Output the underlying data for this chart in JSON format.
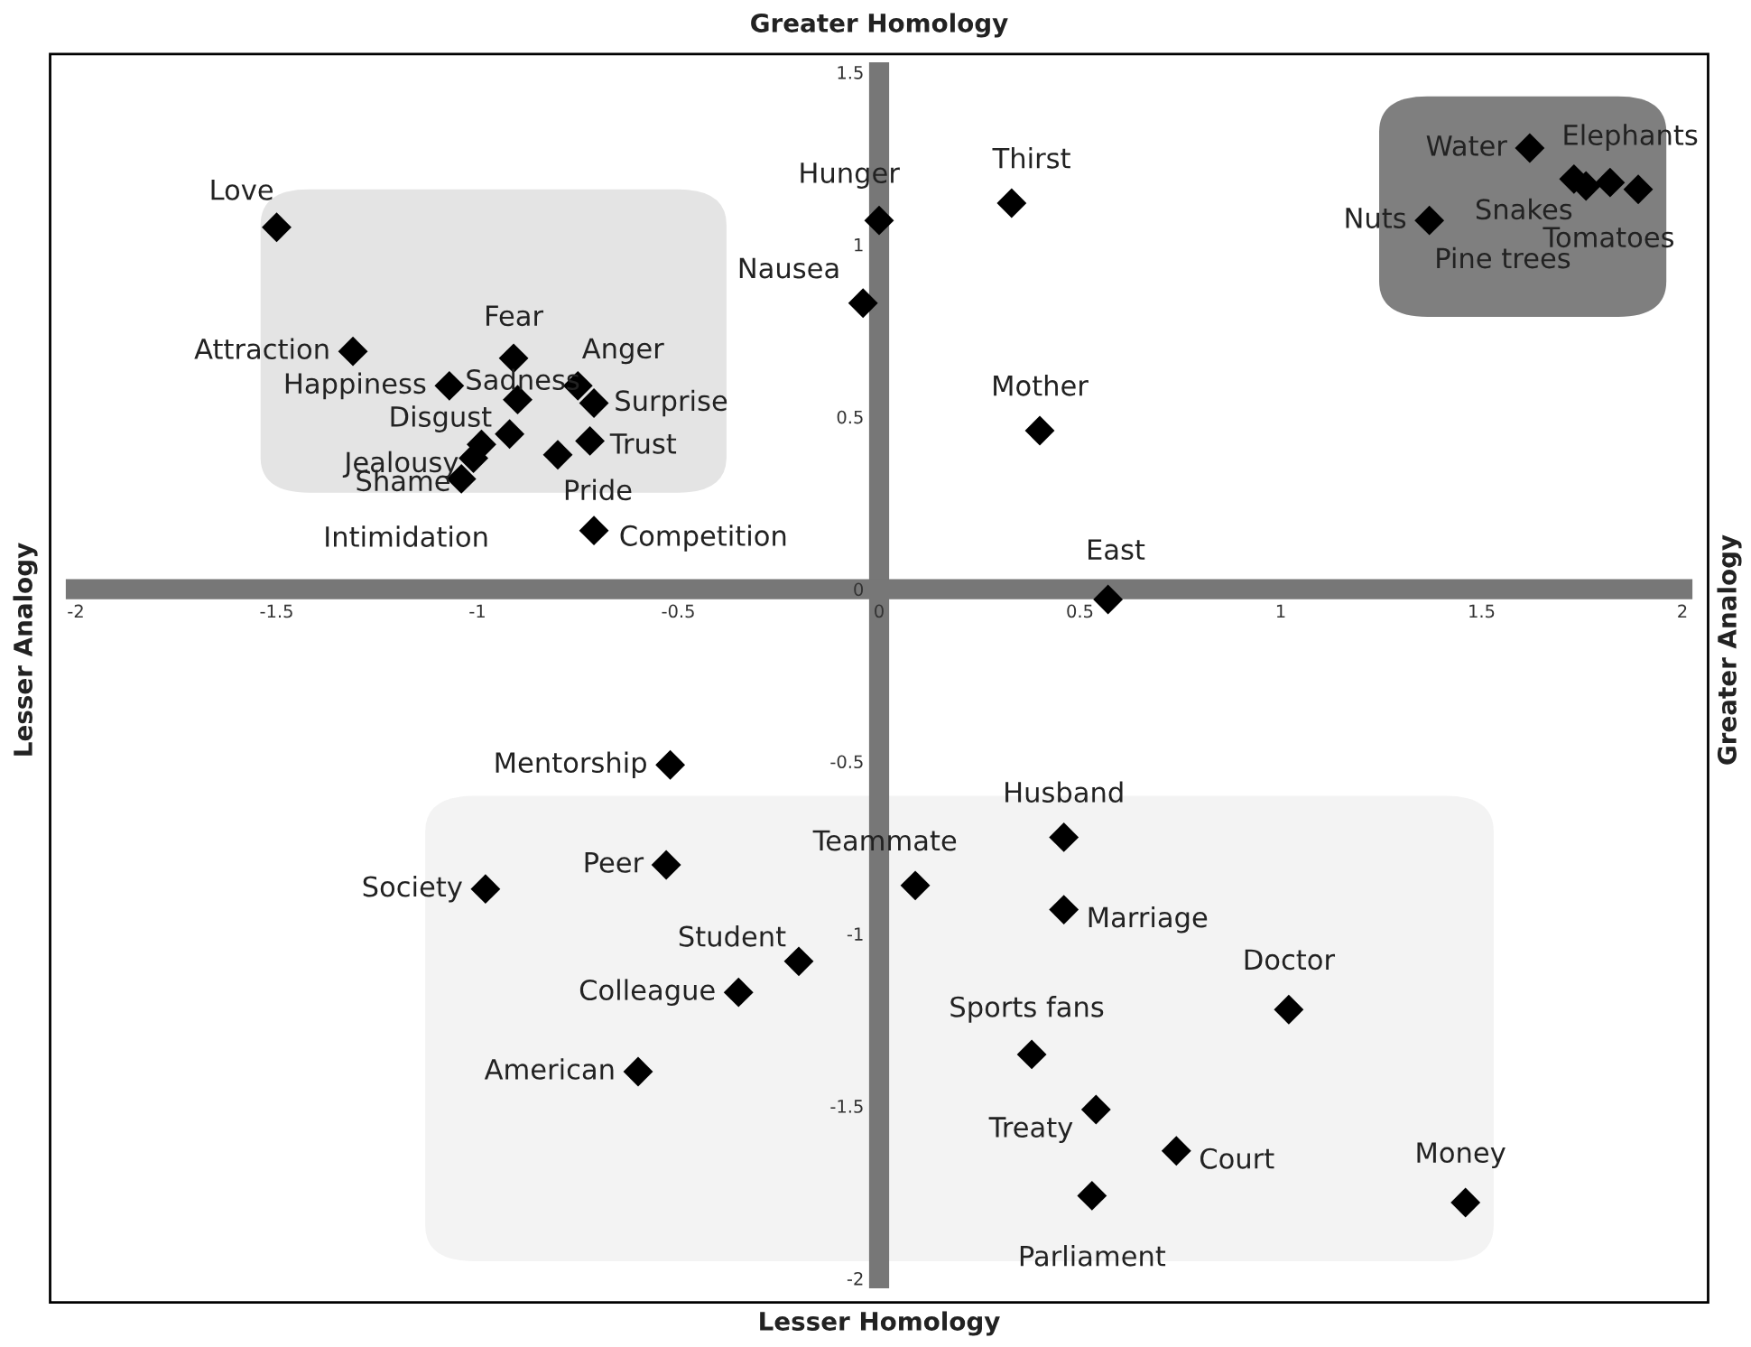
{
  "chart_data": {
    "type": "scatter",
    "xlabel": "Lesser Homology",
    "x2label": "Greater Homology",
    "ylabel": "Lesser Analogy",
    "y2label": "Greater Analogy",
    "xlim": [
      -2,
      2
    ],
    "ylim": [
      -2,
      1.5
    ],
    "xticks": [
      -2,
      -1.5,
      -1,
      -0.5,
      0,
      0.5,
      1,
      1.5,
      2
    ],
    "yticks": [
      -2,
      -1.5,
      -1,
      -0.5,
      0,
      0.5,
      1,
      1.5
    ],
    "marker": "diamond",
    "grid": false,
    "series": [
      {
        "color": "#000000",
        "x": [
          -1.5,
          -1.31,
          -1.07,
          -0.91,
          -0.9,
          -0.75,
          -0.71,
          -0.92,
          -0.72,
          -0.8,
          -0.99,
          -1.01,
          -1.04,
          -0.71,
          0.0,
          -0.04,
          0.33,
          0.4,
          0.57,
          1.62,
          1.82,
          1.73,
          1.89,
          1.37,
          1.76,
          -0.52,
          -0.53,
          -0.98,
          -0.2,
          -0.35,
          -0.6,
          0.09,
          0.46,
          0.46,
          0.38,
          0.54,
          0.74,
          0.53,
          1.02,
          1.46
        ],
        "values": [
          1.05,
          0.69,
          0.59,
          0.67,
          0.55,
          0.59,
          0.54,
          0.45,
          0.43,
          0.39,
          0.42,
          0.38,
          0.32,
          0.17,
          1.07,
          0.83,
          1.12,
          0.46,
          -0.03,
          1.28,
          1.18,
          1.19,
          1.16,
          1.07,
          1.17,
          -0.51,
          -0.8,
          -0.87,
          -1.08,
          -1.17,
          -1.4,
          -0.86,
          -0.72,
          -0.93,
          -1.35,
          -1.51,
          -1.63,
          -1.76,
          -1.22,
          -1.78
        ]
      }
    ],
    "annotations": [
      {
        "text": "Love",
        "x": -1.5,
        "y": 1.05
      },
      {
        "text": "Attraction",
        "x": -1.31,
        "y": 0.69
      },
      {
        "text": "Happiness",
        "x": -1.07,
        "y": 0.59
      },
      {
        "text": "Fear",
        "x": -0.91,
        "y": 0.67
      },
      {
        "text": "Sadness",
        "x": -0.9,
        "y": 0.55
      },
      {
        "text": "Anger",
        "x": -0.75,
        "y": 0.59
      },
      {
        "text": "Surprise",
        "x": -0.71,
        "y": 0.54
      },
      {
        "text": "Disgust",
        "x": -0.92,
        "y": 0.45
      },
      {
        "text": "Trust",
        "x": -0.72,
        "y": 0.43
      },
      {
        "text": "Pride",
        "x": -0.8,
        "y": 0.39
      },
      {
        "text": "Jealousy",
        "x": -0.99,
        "y": 0.42
      },
      {
        "text": "Shame",
        "x": -1.01,
        "y": 0.38
      },
      {
        "text": "Intimidation",
        "x": -1.04,
        "y": 0.32
      },
      {
        "text": "Competition",
        "x": -0.71,
        "y": 0.17
      },
      {
        "text": "Hunger",
        "x": 0.0,
        "y": 1.07
      },
      {
        "text": "Nausea",
        "x": -0.04,
        "y": 0.83
      },
      {
        "text": "Thirst",
        "x": 0.33,
        "y": 1.12
      },
      {
        "text": "Mother",
        "x": 0.4,
        "y": 0.46
      },
      {
        "text": "East",
        "x": 0.57,
        "y": -0.03
      },
      {
        "text": "Water",
        "x": 1.62,
        "y": 1.28
      },
      {
        "text": "Elephants",
        "x": 1.82,
        "y": 1.18
      },
      {
        "text": "Snakes",
        "x": 1.73,
        "y": 1.19
      },
      {
        "text": "Tomatoes",
        "x": 1.89,
        "y": 1.16
      },
      {
        "text": "Nuts",
        "x": 1.37,
        "y": 1.07
      },
      {
        "text": "Pine trees",
        "x": 1.37,
        "y": 1.07
      },
      {
        "text": "Mentorship",
        "x": -0.52,
        "y": -0.51
      },
      {
        "text": "Peer",
        "x": -0.53,
        "y": -0.8
      },
      {
        "text": "Society",
        "x": -0.98,
        "y": -0.87
      },
      {
        "text": "Student",
        "x": -0.2,
        "y": -1.08
      },
      {
        "text": "Colleague",
        "x": -0.35,
        "y": -1.17
      },
      {
        "text": "American",
        "x": -0.6,
        "y": -1.4
      },
      {
        "text": "Teammate",
        "x": 0.09,
        "y": -0.86
      },
      {
        "text": "Husband",
        "x": 0.46,
        "y": -0.72
      },
      {
        "text": "Marriage",
        "x": 0.46,
        "y": -0.93
      },
      {
        "text": "Sports fans",
        "x": 0.38,
        "y": -1.35
      },
      {
        "text": "Treaty",
        "x": 0.54,
        "y": -1.51
      },
      {
        "text": "Court",
        "x": 0.74,
        "y": -1.63
      },
      {
        "text": "Parliament",
        "x": 0.53,
        "y": -1.76
      },
      {
        "text": "Doctor",
        "x": 1.02,
        "y": -1.22
      },
      {
        "text": "Money",
        "x": 1.46,
        "y": -1.78
      }
    ]
  }
}
